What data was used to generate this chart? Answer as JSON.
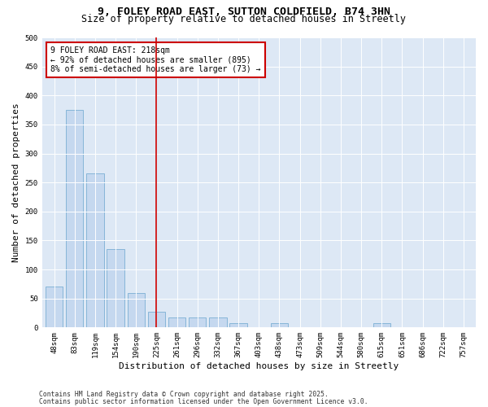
{
  "title1": "9, FOLEY ROAD EAST, SUTTON COLDFIELD, B74 3HN",
  "title2": "Size of property relative to detached houses in Streetly",
  "xlabel": "Distribution of detached houses by size in Streetly",
  "ylabel": "Number of detached properties",
  "categories": [
    "48sqm",
    "83sqm",
    "119sqm",
    "154sqm",
    "190sqm",
    "225sqm",
    "261sqm",
    "296sqm",
    "332sqm",
    "367sqm",
    "403sqm",
    "438sqm",
    "473sqm",
    "509sqm",
    "544sqm",
    "580sqm",
    "615sqm",
    "651sqm",
    "686sqm",
    "722sqm",
    "757sqm"
  ],
  "values": [
    70,
    375,
    265,
    135,
    60,
    27,
    17,
    17,
    17,
    7,
    0,
    7,
    0,
    0,
    0,
    0,
    7,
    0,
    0,
    0,
    0
  ],
  "bar_color": "#c5d8ef",
  "bar_edge_color": "#7bafd4",
  "vline_x_idx": 5,
  "vline_color": "#cc0000",
  "annotation_line1": "9 FOLEY ROAD EAST: 218sqm",
  "annotation_line2": "← 92% of detached houses are smaller (895)",
  "annotation_line3": "8% of semi-detached houses are larger (73) →",
  "annotation_box_color": "#cc0000",
  "bg_color": "#dde8f5",
  "ylim": [
    0,
    500
  ],
  "yticks": [
    0,
    50,
    100,
    150,
    200,
    250,
    300,
    350,
    400,
    450,
    500
  ],
  "footer1": "Contains HM Land Registry data © Crown copyright and database right 2025.",
  "footer2": "Contains public sector information licensed under the Open Government Licence v3.0.",
  "title_fontsize": 9.5,
  "subtitle_fontsize": 8.5,
  "tick_fontsize": 6.5,
  "label_fontsize": 8,
  "annotation_fontsize": 7,
  "footer_fontsize": 5.8
}
